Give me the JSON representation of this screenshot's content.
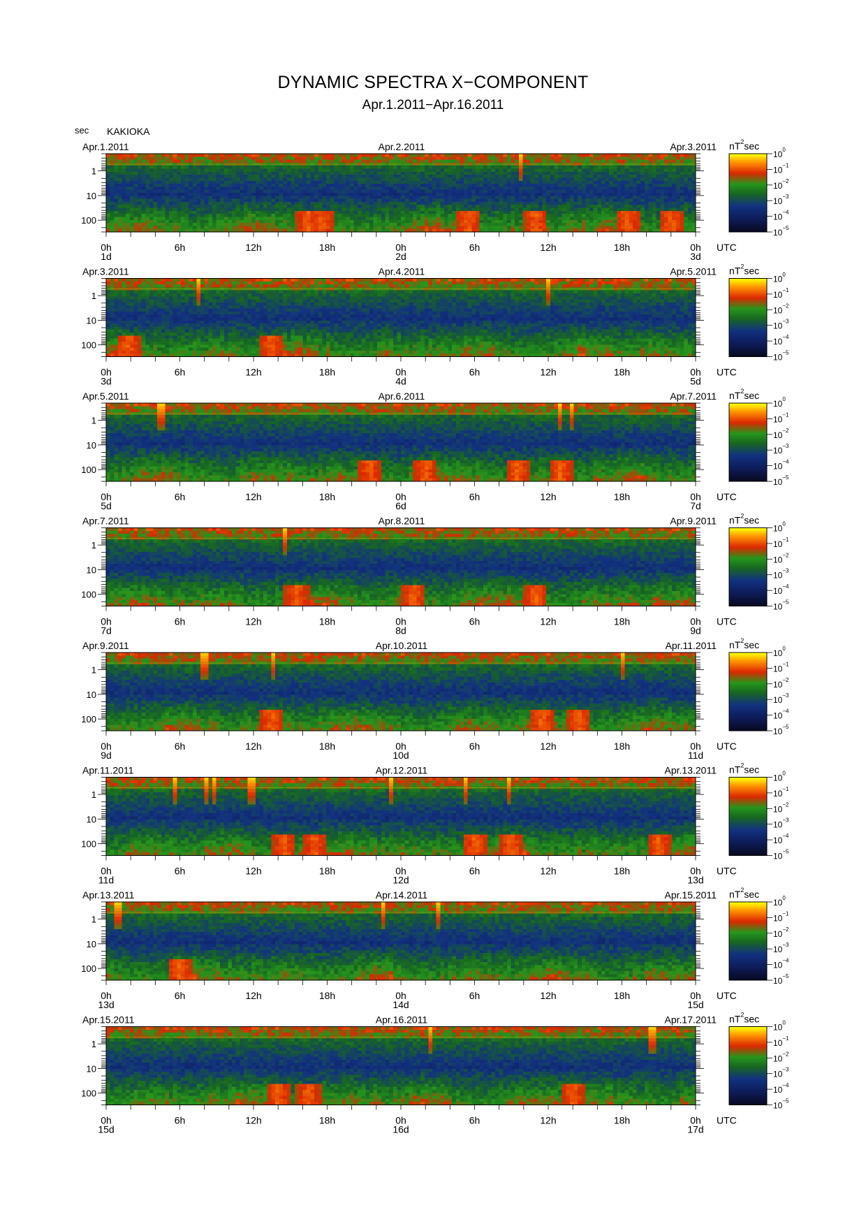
{
  "title": "DYNAMIC SPECTRA X−COMPONENT",
  "subtitle": "Apr.1.2011−Apr.16.2011",
  "station": "KAKIOKA",
  "ylabel": "sec",
  "utc_label": "UTC",
  "colorbar": {
    "unit_base": "nT",
    "unit_exp": "2",
    "unit_suffix": "sec",
    "tick_base": "10",
    "tick_exps": [
      "0",
      "−1",
      "−2",
      "−3",
      "−4",
      "−5"
    ],
    "stops": [
      "#ffff00",
      "#ff9900",
      "#ff2200",
      "#228800",
      "#113377",
      "#000010"
    ]
  },
  "x_tick_labels": [
    "0h",
    "6h",
    "12h",
    "18h",
    "0h",
    "6h",
    "12h",
    "18h",
    "0h"
  ],
  "y_tick_labels": [
    "1",
    "10",
    "100"
  ],
  "chart_data": {
    "type": "heatmap",
    "title": "DYNAMIC SPECTRA X−COMPONENT",
    "subtitle": "Apr.1.2011−Apr.16.2011",
    "ylabel": "sec",
    "yscale": "log",
    "ylim": [
      0.2,
      300
    ],
    "xlim_hours": [
      0,
      48
    ],
    "colorbar_log_range": [
      -5,
      0
    ],
    "panels": [
      {
        "left_date": "Apr.1.2011",
        "mid_date": "Apr.2.2011",
        "right_date": "Apr.3.2011",
        "start_day": "1d",
        "mid_day": "2d",
        "end_day": "3d",
        "bursts_hours": [
          33.7
        ],
        "events_hours": [
          16.5,
          17.6,
          29.5,
          35.0,
          42.5,
          46.0
        ]
      },
      {
        "left_date": "Apr.3.2011",
        "mid_date": "Apr.4.2011",
        "right_date": "Apr.5.2011",
        "start_day": "3d",
        "mid_day": "4d",
        "end_day": "5d",
        "bursts_hours": [
          7.5,
          36.0
        ],
        "events_hours": [
          1.8,
          13.5
        ]
      },
      {
        "left_date": "Apr.5.2011",
        "mid_date": "Apr.6.2011",
        "right_date": "Apr.7.2011",
        "start_day": "5d",
        "mid_day": "6d",
        "end_day": "7d",
        "bursts_hours": [
          4.5,
          37.0,
          38.0
        ],
        "events_hours": [
          21.5,
          26.0,
          33.5,
          37.0
        ]
      },
      {
        "left_date": "Apr.7.2011",
        "mid_date": "Apr.8.2011",
        "right_date": "Apr.9.2011",
        "start_day": "7d",
        "mid_day": "8d",
        "end_day": "9d",
        "bursts_hours": [
          14.5
        ],
        "events_hours": [
          15.5,
          25.0,
          35.0
        ]
      },
      {
        "left_date": "Apr.9.2011",
        "mid_date": "Apr.10.2011",
        "right_date": "Apr.11.2011",
        "start_day": "9d",
        "mid_day": "10d",
        "end_day": "11d",
        "bursts_hours": [
          8.0,
          13.5,
          42.0
        ],
        "events_hours": [
          13.5,
          35.5,
          38.5
        ]
      },
      {
        "left_date": "Apr.11.2011",
        "mid_date": "Apr.12.2011",
        "right_date": "Apr.13.2011",
        "start_day": "11d",
        "mid_day": "12d",
        "end_day": "13d",
        "bursts_hours": [
          5.5,
          8.2,
          8.9,
          11.8,
          23.2,
          29.2,
          32.8
        ],
        "events_hours": [
          14.5,
          17.0,
          30.0,
          33.0,
          45.0
        ]
      },
      {
        "left_date": "Apr.13.2011",
        "mid_date": "Apr.14.2011",
        "right_date": "Apr.15.2011",
        "start_day": "13d",
        "mid_day": "14d",
        "end_day": "15d",
        "bursts_hours": [
          1.0,
          22.5,
          27.0
        ],
        "events_hours": [
          6.0
        ]
      },
      {
        "left_date": "Apr.15.2011",
        "mid_date": "Apr.16.2011",
        "right_date": "Apr.17.2011",
        "start_day": "15d",
        "mid_day": "16d",
        "end_day": "17d",
        "bursts_hours": [
          26.3,
          44.5
        ],
        "events_hours": [
          14.0,
          16.5,
          38.0
        ]
      }
    ]
  }
}
